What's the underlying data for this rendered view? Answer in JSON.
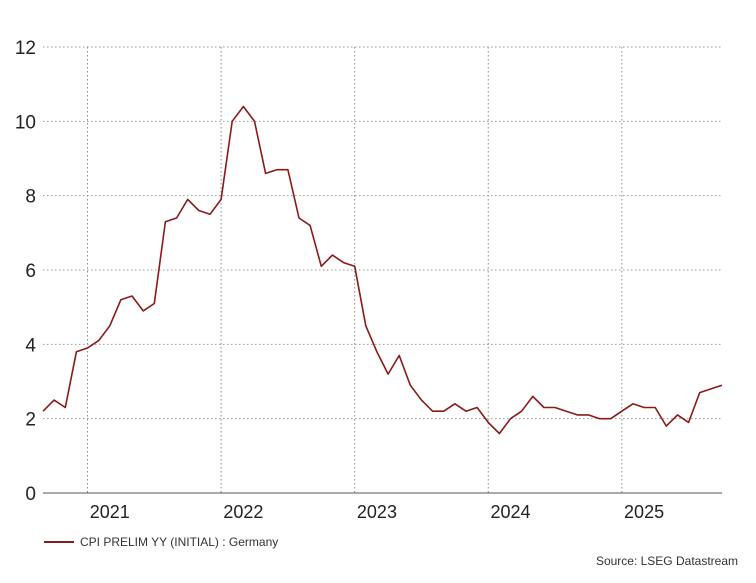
{
  "chart_data": {
    "type": "line",
    "title": "",
    "xlabel": "",
    "ylabel": "",
    "ylim": [
      0,
      12
    ],
    "y_ticks": [
      0,
      2,
      4,
      6,
      8,
      10,
      12
    ],
    "x_range": [
      "2020-09",
      "2025-10"
    ],
    "x_ticks": [
      {
        "label": "2021",
        "date": "2021-03"
      },
      {
        "label": "2022",
        "date": "2022-03"
      },
      {
        "label": "2023",
        "date": "2023-03"
      },
      {
        "label": "2024",
        "date": "2024-03"
      },
      {
        "label": "2025",
        "date": "2025-03"
      }
    ],
    "year_gridlines": [
      "2021-01",
      "2022-01",
      "2023-01",
      "2024-01",
      "2025-01"
    ],
    "grid": true,
    "legend_position": "bottom-left",
    "line_color": "#8b1a1a",
    "series": [
      {
        "name": "CPI PRELIM YY (INITIAL) : Germany",
        "x": [
          "2020-09",
          "2020-10",
          "2020-11",
          "2020-12",
          "2021-01",
          "2021-02",
          "2021-03",
          "2021-04",
          "2021-05",
          "2021-06",
          "2021-07",
          "2021-08",
          "2021-09",
          "2021-10",
          "2021-11",
          "2021-12",
          "2022-01",
          "2022-02",
          "2022-03",
          "2022-04",
          "2022-05",
          "2022-06",
          "2022-07",
          "2022-08",
          "2022-09",
          "2022-10",
          "2022-11",
          "2022-12",
          "2023-01",
          "2023-02",
          "2023-03",
          "2023-04",
          "2023-05",
          "2023-06",
          "2023-07",
          "2023-08",
          "2023-09",
          "2023-10",
          "2023-11",
          "2023-12",
          "2024-01",
          "2024-02",
          "2024-03",
          "2024-04",
          "2024-05",
          "2024-06",
          "2024-07",
          "2024-08",
          "2024-09",
          "2024-10",
          "2024-11",
          "2024-12",
          "2025-01",
          "2025-02",
          "2025-03",
          "2025-04",
          "2025-05",
          "2025-06",
          "2025-07",
          "2025-08",
          "2025-09",
          "2025-10"
        ],
        "values": [
          2.2,
          2.5,
          2.3,
          3.8,
          3.9,
          4.1,
          4.5,
          5.2,
          5.3,
          4.9,
          5.1,
          7.3,
          7.4,
          7.9,
          7.6,
          7.5,
          7.9,
          10.0,
          10.4,
          10.0,
          8.6,
          8.7,
          8.7,
          7.4,
          7.2,
          6.1,
          6.4,
          6.2,
          6.1,
          4.5,
          3.8,
          3.2,
          3.7,
          2.9,
          2.5,
          2.2,
          2.2,
          2.4,
          2.2,
          2.3,
          1.9,
          1.6,
          2.0,
          2.2,
          2.6,
          2.3,
          2.3,
          2.2,
          2.1,
          2.1,
          2.0,
          2.0,
          2.2,
          2.4,
          2.3,
          2.3,
          1.8,
          2.1,
          1.9,
          2.7,
          2.8,
          2.9
        ]
      }
    ],
    "source": "Source: LSEG Datastream"
  }
}
